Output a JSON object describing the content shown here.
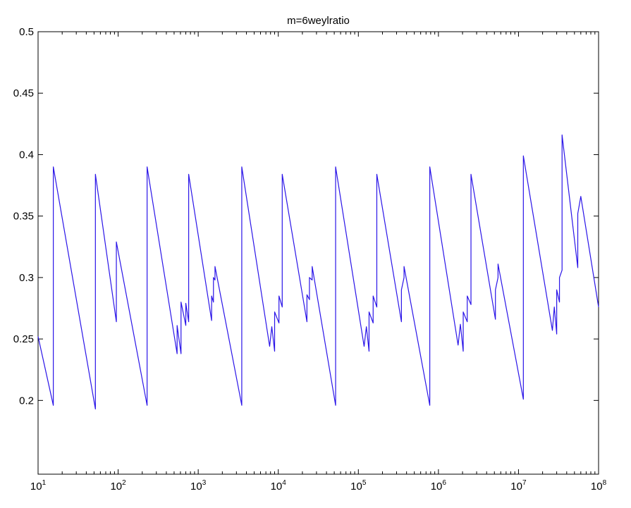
{
  "chart_data": {
    "type": "line",
    "title": "m=6weylratio",
    "xlabel": "",
    "ylabel": "",
    "xscale": "log",
    "xlim": [
      10,
      100000000
    ],
    "ylim": [
      0.14,
      0.5
    ],
    "grid": false,
    "legend": "none",
    "line_color": "#2a14e8",
    "x_ticks": [
      {
        "base": "10",
        "exp": "1",
        "value": 10
      },
      {
        "base": "10",
        "exp": "2",
        "value": 100
      },
      {
        "base": "10",
        "exp": "3",
        "value": 1000
      },
      {
        "base": "10",
        "exp": "4",
        "value": 10000
      },
      {
        "base": "10",
        "exp": "5",
        "value": 100000
      },
      {
        "base": "10",
        "exp": "6",
        "value": 1000000
      },
      {
        "base": "10",
        "exp": "7",
        "value": 10000000
      },
      {
        "base": "10",
        "exp": "8",
        "value": 100000000
      }
    ],
    "y_ticks": [
      {
        "value": 0.2,
        "label": "0.2"
      },
      {
        "value": 0.25,
        "label": "0.25"
      },
      {
        "value": 0.3,
        "label": "0.3"
      },
      {
        "value": 0.35,
        "label": "0.35"
      },
      {
        "value": 0.4,
        "label": "0.4"
      },
      {
        "value": 0.45,
        "label": "0.45"
      },
      {
        "value": 0.5,
        "label": "0.5"
      }
    ],
    "series": [
      {
        "points": [
          [
            10,
            0.252
          ],
          [
            15.5,
            0.196
          ],
          [
            15.5,
            0.39
          ],
          [
            52,
            0.193
          ],
          [
            52,
            0.384
          ],
          [
            95,
            0.264
          ],
          [
            95,
            0.329
          ],
          [
            230,
            0.196
          ],
          [
            230,
            0.39
          ],
          [
            545,
            0.238
          ],
          [
            545,
            0.261
          ],
          [
            610,
            0.238
          ],
          [
            610,
            0.28
          ],
          [
            700,
            0.261
          ],
          [
            700,
            0.279
          ],
          [
            760,
            0.264
          ],
          [
            760,
            0.384
          ],
          [
            1470,
            0.265
          ],
          [
            1470,
            0.285
          ],
          [
            1550,
            0.28
          ],
          [
            1550,
            0.3
          ],
          [
            1620,
            0.298
          ],
          [
            1620,
            0.309
          ],
          [
            3500,
            0.196
          ],
          [
            3500,
            0.39
          ],
          [
            7800,
            0.244
          ],
          [
            8300,
            0.26
          ],
          [
            9000,
            0.24
          ],
          [
            9000,
            0.272
          ],
          [
            10200,
            0.263
          ],
          [
            10200,
            0.285
          ],
          [
            11200,
            0.276
          ],
          [
            11200,
            0.384
          ],
          [
            22800,
            0.264
          ],
          [
            22800,
            0.286
          ],
          [
            24500,
            0.282
          ],
          [
            24500,
            0.3
          ],
          [
            26500,
            0.298
          ],
          [
            26500,
            0.309
          ],
          [
            52000,
            0.196
          ],
          [
            52000,
            0.39
          ],
          [
            118000,
            0.244
          ],
          [
            126000,
            0.26
          ],
          [
            136000,
            0.24
          ],
          [
            136000,
            0.272
          ],
          [
            153000,
            0.263
          ],
          [
            153000,
            0.285
          ],
          [
            170000,
            0.276
          ],
          [
            170000,
            0.384
          ],
          [
            345000,
            0.264
          ],
          [
            345000,
            0.29
          ],
          [
            372000,
            0.3
          ],
          [
            372000,
            0.309
          ],
          [
            780000,
            0.196
          ],
          [
            780000,
            0.39
          ],
          [
            1760000,
            0.245
          ],
          [
            1880000,
            0.262
          ],
          [
            2040000,
            0.24
          ],
          [
            2040000,
            0.272
          ],
          [
            2290000,
            0.264
          ],
          [
            2290000,
            0.285
          ],
          [
            2550000,
            0.278
          ],
          [
            2550000,
            0.384
          ],
          [
            5150000,
            0.266
          ],
          [
            5150000,
            0.29
          ],
          [
            5550000,
            0.3
          ],
          [
            5550000,
            0.311
          ],
          [
            11500000,
            0.201
          ],
          [
            11500000,
            0.399
          ],
          [
            26500000,
            0.257
          ],
          [
            28000000,
            0.276
          ],
          [
            30000000,
            0.254
          ],
          [
            30000000,
            0.29
          ],
          [
            32500000,
            0.28
          ],
          [
            32500000,
            0.3
          ],
          [
            35000000,
            0.306
          ],
          [
            35000000,
            0.416
          ],
          [
            55000000,
            0.308
          ],
          [
            55000000,
            0.352
          ],
          [
            60000000,
            0.366
          ],
          [
            100000000,
            0.276
          ]
        ]
      }
    ]
  }
}
